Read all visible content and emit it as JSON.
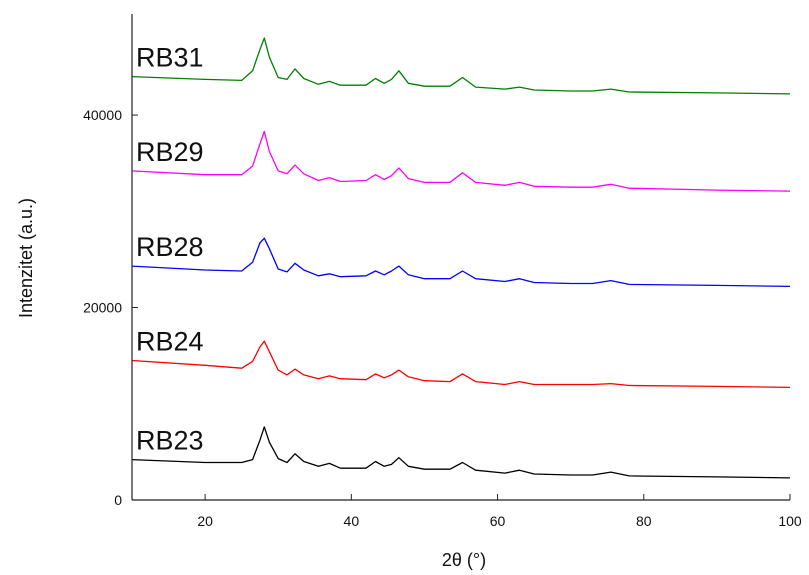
{
  "chart_data": {
    "type": "line",
    "title": "",
    "xlabel": "2θ (°)",
    "ylabel": "Intenzitet (a.u.)",
    "xlim": [
      10,
      100
    ],
    "ylim": [
      0,
      50500
    ],
    "x_ticks": [
      20,
      40,
      60,
      80,
      100
    ],
    "y_ticks": [
      0,
      20000,
      40000
    ],
    "grid": false,
    "legend": "none (labels placed beside curves)",
    "series": [
      {
        "name": "RB23",
        "color": "#000000",
        "points": [
          [
            10,
            4200
          ],
          [
            20,
            3900
          ],
          [
            25,
            3900
          ],
          [
            26.5,
            4200
          ],
          [
            27.5,
            6200
          ],
          [
            28.1,
            7600
          ],
          [
            28.8,
            6000
          ],
          [
            30,
            4300
          ],
          [
            31.2,
            3900
          ],
          [
            32.3,
            4800
          ],
          [
            33.5,
            4000
          ],
          [
            35.5,
            3500
          ],
          [
            37,
            3800
          ],
          [
            38.5,
            3300
          ],
          [
            42,
            3300
          ],
          [
            43.3,
            4000
          ],
          [
            44.5,
            3500
          ],
          [
            45.5,
            3700
          ],
          [
            46.5,
            4400
          ],
          [
            47.8,
            3500
          ],
          [
            50,
            3200
          ],
          [
            53.5,
            3200
          ],
          [
            55.2,
            3900
          ],
          [
            57,
            3100
          ],
          [
            61,
            2800
          ],
          [
            63,
            3100
          ],
          [
            65,
            2700
          ],
          [
            70,
            2600
          ],
          [
            73,
            2600
          ],
          [
            75.5,
            2900
          ],
          [
            78,
            2500
          ],
          [
            90,
            2400
          ],
          [
            100,
            2300
          ]
        ]
      },
      {
        "name": "RB24",
        "color": "#ff0000",
        "points": [
          [
            10,
            14500
          ],
          [
            20,
            14000
          ],
          [
            25,
            13700
          ],
          [
            26.5,
            14400
          ],
          [
            27.5,
            15900
          ],
          [
            28.1,
            16500
          ],
          [
            28.8,
            15400
          ],
          [
            30,
            13500
          ],
          [
            31.2,
            13000
          ],
          [
            32.3,
            13600
          ],
          [
            33.5,
            13000
          ],
          [
            35.5,
            12600
          ],
          [
            37,
            12900
          ],
          [
            38.5,
            12600
          ],
          [
            42,
            12500
          ],
          [
            43.3,
            13100
          ],
          [
            44.5,
            12700
          ],
          [
            45.5,
            13000
          ],
          [
            46.5,
            13500
          ],
          [
            47.8,
            12800
          ],
          [
            50,
            12400
          ],
          [
            53.5,
            12300
          ],
          [
            55.2,
            13100
          ],
          [
            57,
            12300
          ],
          [
            61,
            12000
          ],
          [
            63,
            12300
          ],
          [
            65,
            12000
          ],
          [
            70,
            12000
          ],
          [
            73,
            12000
          ],
          [
            75.5,
            12100
          ],
          [
            78,
            11900
          ],
          [
            90,
            11800
          ],
          [
            100,
            11700
          ]
        ]
      },
      {
        "name": "RB28",
        "color": "#0000ff",
        "points": [
          [
            10,
            24300
          ],
          [
            20,
            23900
          ],
          [
            25,
            23800
          ],
          [
            26.5,
            24700
          ],
          [
            27.5,
            26700
          ],
          [
            28.1,
            27200
          ],
          [
            28.8,
            26100
          ],
          [
            30,
            24000
          ],
          [
            31.2,
            23700
          ],
          [
            32.3,
            24600
          ],
          [
            33.5,
            23900
          ],
          [
            35.5,
            23300
          ],
          [
            37,
            23500
          ],
          [
            38.5,
            23200
          ],
          [
            42,
            23300
          ],
          [
            43.3,
            23800
          ],
          [
            44.5,
            23400
          ],
          [
            45.5,
            23800
          ],
          [
            46.5,
            24300
          ],
          [
            47.8,
            23400
          ],
          [
            50,
            23000
          ],
          [
            53.5,
            23000
          ],
          [
            55.2,
            23800
          ],
          [
            57,
            23000
          ],
          [
            61,
            22700
          ],
          [
            63,
            23000
          ],
          [
            65,
            22600
          ],
          [
            70,
            22500
          ],
          [
            73,
            22500
          ],
          [
            75.5,
            22800
          ],
          [
            78,
            22400
          ],
          [
            90,
            22300
          ],
          [
            100,
            22200
          ]
        ]
      },
      {
        "name": "RB29",
        "color": "#ff00ff",
        "points": [
          [
            10,
            34200
          ],
          [
            20,
            33800
          ],
          [
            25,
            33800
          ],
          [
            26.5,
            34700
          ],
          [
            27.5,
            37000
          ],
          [
            28.1,
            38300
          ],
          [
            28.8,
            36200
          ],
          [
            30,
            34200
          ],
          [
            31.2,
            33900
          ],
          [
            32.3,
            34800
          ],
          [
            33.5,
            33900
          ],
          [
            35.5,
            33200
          ],
          [
            37,
            33500
          ],
          [
            38.5,
            33100
          ],
          [
            42,
            33200
          ],
          [
            43.3,
            33800
          ],
          [
            44.5,
            33300
          ],
          [
            45.5,
            33700
          ],
          [
            46.5,
            34500
          ],
          [
            47.8,
            33400
          ],
          [
            50,
            33000
          ],
          [
            53.5,
            33000
          ],
          [
            55.2,
            34000
          ],
          [
            57,
            33000
          ],
          [
            61,
            32700
          ],
          [
            63,
            33000
          ],
          [
            65,
            32600
          ],
          [
            70,
            32500
          ],
          [
            73,
            32500
          ],
          [
            75.5,
            32800
          ],
          [
            78,
            32400
          ],
          [
            90,
            32200
          ],
          [
            100,
            32100
          ]
        ]
      },
      {
        "name": "RB31",
        "color": "#008000",
        "points": [
          [
            10,
            44000
          ],
          [
            20,
            43700
          ],
          [
            25,
            43600
          ],
          [
            26.5,
            44600
          ],
          [
            27.5,
            46800
          ],
          [
            28.1,
            48000
          ],
          [
            28.8,
            46000
          ],
          [
            30,
            43900
          ],
          [
            31.2,
            43700
          ],
          [
            32.3,
            44800
          ],
          [
            33.5,
            43800
          ],
          [
            35.5,
            43200
          ],
          [
            37,
            43500
          ],
          [
            38.5,
            43100
          ],
          [
            42,
            43100
          ],
          [
            43.3,
            43800
          ],
          [
            44.5,
            43300
          ],
          [
            45.5,
            43700
          ],
          [
            46.5,
            44600
          ],
          [
            47.8,
            43300
          ],
          [
            50,
            43000
          ],
          [
            53.5,
            43000
          ],
          [
            55.2,
            43900
          ],
          [
            57,
            42900
          ],
          [
            61,
            42700
          ],
          [
            63,
            42900
          ],
          [
            65,
            42600
          ],
          [
            70,
            42500
          ],
          [
            73,
            42500
          ],
          [
            75.5,
            42700
          ],
          [
            78,
            42400
          ],
          [
            90,
            42300
          ],
          [
            100,
            42200
          ]
        ]
      }
    ]
  }
}
